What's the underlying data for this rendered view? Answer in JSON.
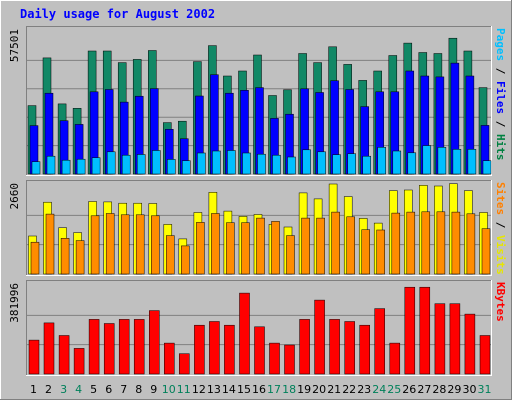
{
  "chart_data": {
    "type": "bar",
    "title": "Daily usage for August 2002",
    "categories": [
      "1",
      "2",
      "3",
      "4",
      "5",
      "6",
      "7",
      "8",
      "9",
      "10",
      "11",
      "12",
      "13",
      "14",
      "15",
      "16",
      "17",
      "18",
      "19",
      "20",
      "21",
      "22",
      "23",
      "24",
      "25",
      "26",
      "27",
      "28",
      "29",
      "30",
      "31"
    ],
    "weekend_days": [
      "3",
      "4",
      "10",
      "11",
      "17",
      "18",
      "24",
      "25",
      "31"
    ],
    "panels": [
      {
        "name": "hits-files-pages",
        "scale_label": "57501",
        "ymax": 57501,
        "axis_labels": [
          {
            "text": "Pages",
            "color": "#00bfff"
          },
          {
            "text": " / ",
            "color": "#000000"
          },
          {
            "text": "Files",
            "color": "#0000ff"
          },
          {
            "text": " / ",
            "color": "#000000"
          },
          {
            "text": "Hits",
            "color": "#008040"
          }
        ],
        "series": [
          {
            "name": "Hits",
            "color": "#118866",
            "values": [
              27700,
              47000,
              28400,
              26600,
              49800,
              49800,
              45100,
              46400,
              50000,
              20800,
              21400,
              45500,
              52000,
              39700,
              41700,
              48200,
              31800,
              34100,
              48800,
              45100,
              51500,
              44400,
              37900,
              41700,
              48000,
              53000,
              49200,
              48800,
              55000,
              49800,
              35000
            ]
          },
          {
            "name": "Files",
            "color": "#0000ff",
            "values": [
              19600,
              32700,
              21600,
              20100,
              33300,
              34200,
              29100,
              31500,
              34600,
              18100,
              14300,
              31600,
              40200,
              32700,
              33900,
              35000,
              22500,
              24200,
              34500,
              33000,
              37800,
              34200,
              27300,
              33300,
              33300,
              41700,
              39700,
              39300,
              44900,
              39700,
              19700
            ]
          },
          {
            "name": "Pages",
            "color": "#00bfff",
            "values": [
              5000,
              7200,
              5600,
              6000,
              6600,
              9000,
              7600,
              7900,
              9500,
              5900,
              5400,
              8500,
              9300,
              9500,
              8500,
              8000,
              7600,
              6900,
              9800,
              9000,
              7800,
              8200,
              7200,
              10800,
              9300,
              8600,
              11500,
              10800,
              10000,
              10000,
              5400
            ]
          }
        ]
      },
      {
        "name": "visits-sites",
        "scale_label": "2660",
        "ymax": 2660,
        "axis_labels": [
          {
            "text": "Sites",
            "color": "#ff8000"
          },
          {
            "text": " / ",
            "color": "#000000"
          },
          {
            "text": "Visits",
            "color": "#e6e600"
          }
        ],
        "series": [
          {
            "name": "Visits",
            "color": "#ffff00",
            "values": [
              1150,
              2170,
              1400,
              1250,
              2190,
              2180,
              2140,
              2140,
              2130,
              1500,
              1060,
              1860,
              2470,
              1900,
              1740,
              1800,
              1500,
              1420,
              2450,
              2270,
              2720,
              2340,
              1680,
              1540,
              2520,
              2540,
              2680,
              2660,
              2730,
              2520,
              1860
            ]
          },
          {
            "name": "Sites",
            "color": "#ff8c00",
            "values": [
              960,
              1810,
              1080,
              1010,
              1760,
              1830,
              1790,
              1790,
              1760,
              1160,
              850,
              1560,
              1830,
              1550,
              1550,
              1690,
              1590,
              1160,
              1690,
              1690,
              1870,
              1730,
              1340,
              1330,
              1840,
              1870,
              1880,
              1880,
              1870,
              1820,
              1370
            ]
          }
        ]
      },
      {
        "name": "kbytes",
        "scale_label": "381996",
        "ymax": 381996,
        "axis_labels": [
          {
            "text": "KBytes",
            "color": "#ff0000"
          }
        ],
        "series": [
          {
            "name": "KBytes",
            "color": "#ff0000",
            "values": [
              147000,
              222000,
              167000,
              111000,
              237000,
              219000,
              237000,
              237000,
              275000,
              134000,
              88000,
              212000,
              228000,
              212000,
              351000,
              205000,
              134000,
              126000,
              237000,
              321000,
              237000,
              228000,
              212000,
              284000,
              134000,
              377000,
              377000,
              305000,
              305000,
              260000,
              167000
            ]
          }
        ]
      }
    ]
  }
}
